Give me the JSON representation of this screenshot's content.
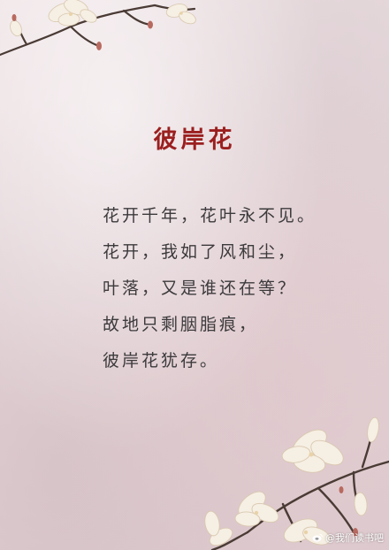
{
  "title": "彼岸花",
  "poem": {
    "lines": [
      "花开千年，花叶永不见。",
      "花开，我如了风和尘，",
      "叶落，又是谁还在等？",
      "故地只剩胭脂痕，",
      "彼岸花犹存。"
    ]
  },
  "watermark": {
    "icon": "weibo-icon",
    "text": "@我们读书吧"
  },
  "colors": {
    "background": "#e8dadd",
    "title": "#9b1f1f",
    "text": "#3c3a3c",
    "blossom": "#f6efe3"
  }
}
